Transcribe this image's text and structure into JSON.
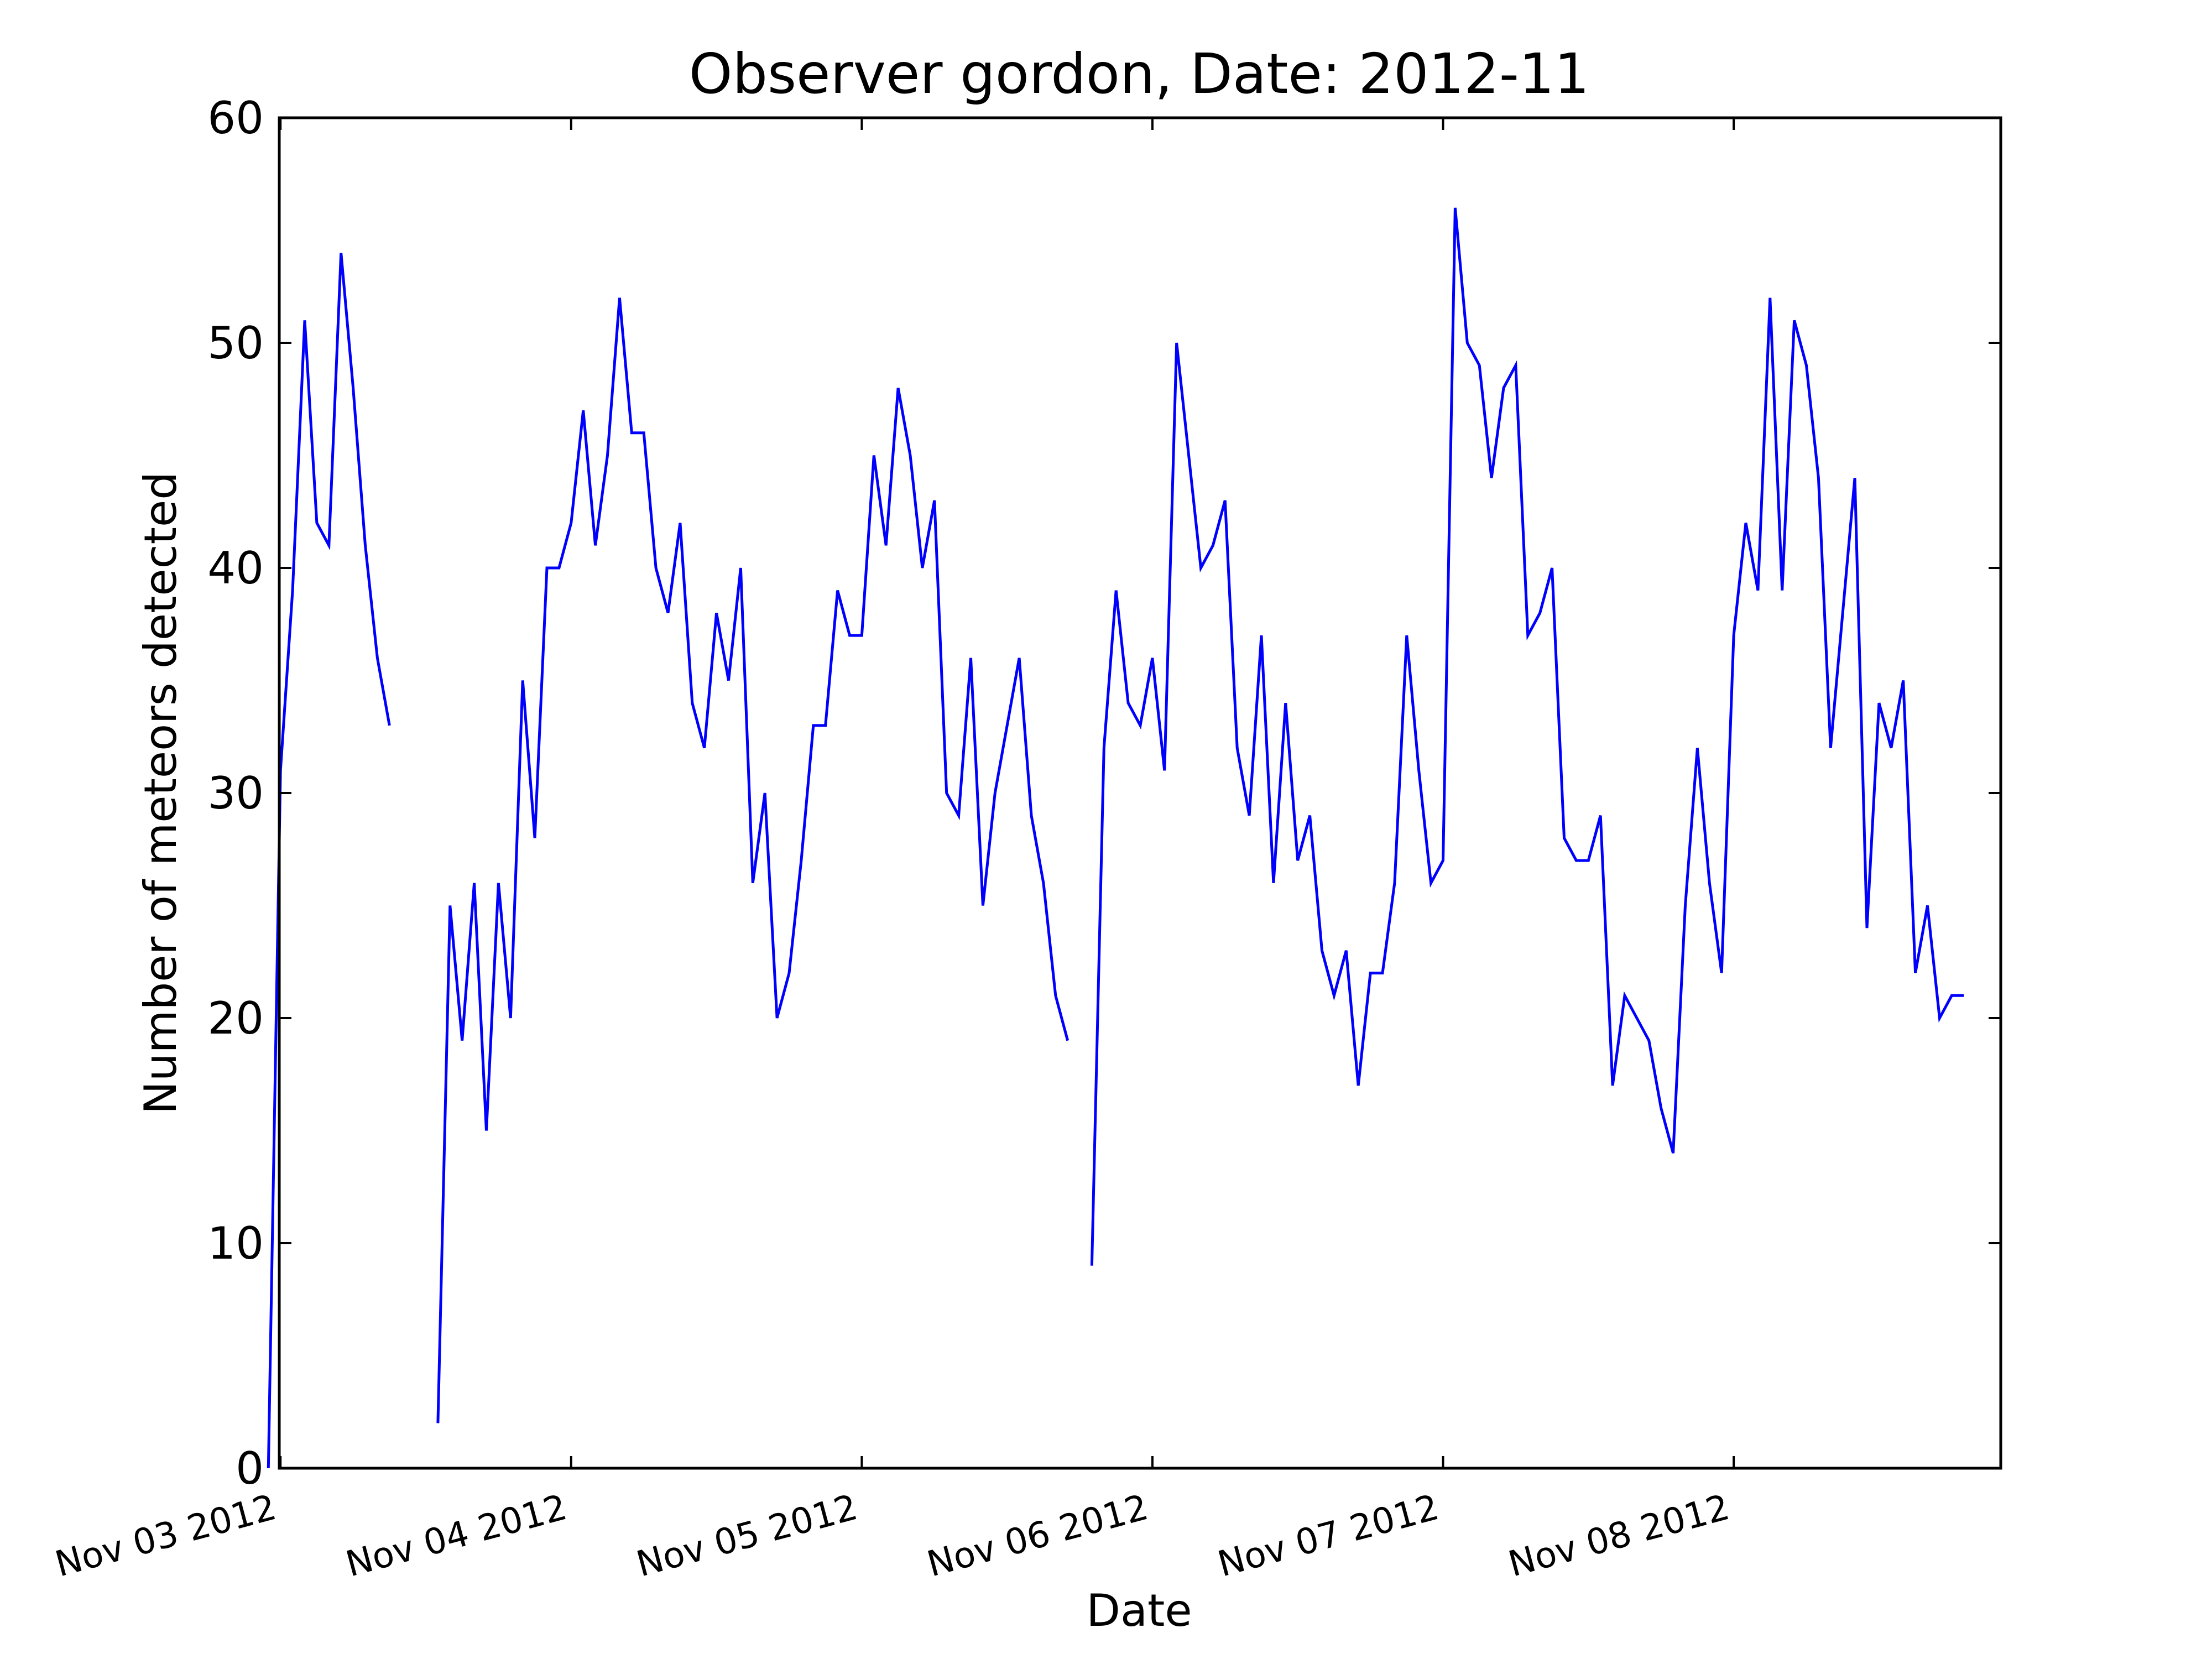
{
  "chart_data": {
    "type": "line",
    "title": "Observer gordon, Date: 2012-11",
    "xlabel": "Date",
    "ylabel": "Number of meteors detected",
    "ylim": [
      0,
      60
    ],
    "yticks": [
      0,
      10,
      20,
      30,
      40,
      50,
      60
    ],
    "xlim": [
      "2012-11-03 00:00",
      "2012-11-08 22:00"
    ],
    "xticks": [
      {
        "value": "2012-11-03 00:00",
        "label": "Nov 03 2012"
      },
      {
        "value": "2012-11-04 00:00",
        "label": "Nov 04 2012"
      },
      {
        "value": "2012-11-05 00:00",
        "label": "Nov 05 2012"
      },
      {
        "value": "2012-11-06 00:00",
        "label": "Nov 06 2012"
      },
      {
        "value": "2012-11-07 00:00",
        "label": "Nov 07 2012"
      },
      {
        "value": "2012-11-08 00:00",
        "label": "Nov 08 2012"
      }
    ],
    "grid": false,
    "line_color": "#0000ff",
    "series": [
      {
        "segments": [
          [
            [
              "2012-11-02 23:00",
              0
            ],
            [
              "2012-11-03 00:00",
              31
            ],
            [
              "2012-11-03 01:00",
              39
            ],
            [
              "2012-11-03 02:00",
              51
            ],
            [
              "2012-11-03 03:00",
              42
            ],
            [
              "2012-11-03 04:00",
              41
            ],
            [
              "2012-11-03 05:00",
              54
            ],
            [
              "2012-11-03 06:00",
              48
            ],
            [
              "2012-11-03 07:00",
              41
            ],
            [
              "2012-11-03 08:00",
              36
            ],
            [
              "2012-11-03 09:00",
              33
            ]
          ],
          [
            [
              "2012-11-03 13:00",
              2
            ],
            [
              "2012-11-03 14:00",
              25
            ],
            [
              "2012-11-03 15:00",
              19
            ],
            [
              "2012-11-03 16:00",
              26
            ],
            [
              "2012-11-03 17:00",
              15
            ],
            [
              "2012-11-03 18:00",
              26
            ],
            [
              "2012-11-03 19:00",
              20
            ],
            [
              "2012-11-03 20:00",
              35
            ],
            [
              "2012-11-03 21:00",
              28
            ],
            [
              "2012-11-03 22:00",
              40
            ],
            [
              "2012-11-03 23:00",
              40
            ],
            [
              "2012-11-04 00:00",
              42
            ],
            [
              "2012-11-04 01:00",
              47
            ],
            [
              "2012-11-04 02:00",
              41
            ],
            [
              "2012-11-04 03:00",
              45
            ],
            [
              "2012-11-04 04:00",
              52
            ],
            [
              "2012-11-04 05:00",
              46
            ],
            [
              "2012-11-04 06:00",
              46
            ],
            [
              "2012-11-04 07:00",
              40
            ],
            [
              "2012-11-04 08:00",
              38
            ],
            [
              "2012-11-04 09:00",
              42
            ],
            [
              "2012-11-04 10:00",
              34
            ],
            [
              "2012-11-04 11:00",
              32
            ],
            [
              "2012-11-04 12:00",
              38
            ],
            [
              "2012-11-04 13:00",
              35
            ],
            [
              "2012-11-04 14:00",
              40
            ],
            [
              "2012-11-04 15:00",
              26
            ],
            [
              "2012-11-04 16:00",
              30
            ],
            [
              "2012-11-04 17:00",
              20
            ],
            [
              "2012-11-04 18:00",
              22
            ],
            [
              "2012-11-04 19:00",
              27
            ],
            [
              "2012-11-04 20:00",
              33
            ],
            [
              "2012-11-04 21:00",
              33
            ],
            [
              "2012-11-04 22:00",
              39
            ],
            [
              "2012-11-04 23:00",
              37
            ],
            [
              "2012-11-05 00:00",
              37
            ],
            [
              "2012-11-05 01:00",
              45
            ],
            [
              "2012-11-05 02:00",
              41
            ],
            [
              "2012-11-05 03:00",
              48
            ],
            [
              "2012-11-05 04:00",
              45
            ],
            [
              "2012-11-05 05:00",
              40
            ],
            [
              "2012-11-05 06:00",
              43
            ],
            [
              "2012-11-05 07:00",
              30
            ],
            [
              "2012-11-05 08:00",
              29
            ],
            [
              "2012-11-05 09:00",
              36
            ],
            [
              "2012-11-05 10:00",
              25
            ],
            [
              "2012-11-05 11:00",
              30
            ],
            [
              "2012-11-05 12:00",
              33
            ],
            [
              "2012-11-05 13:00",
              36
            ],
            [
              "2012-11-05 14:00",
              29
            ],
            [
              "2012-11-05 15:00",
              26
            ],
            [
              "2012-11-05 16:00",
              21
            ],
            [
              "2012-11-05 17:00",
              19
            ]
          ],
          [
            [
              "2012-11-05 19:00",
              9
            ],
            [
              "2012-11-05 20:00",
              32
            ],
            [
              "2012-11-05 21:00",
              39
            ],
            [
              "2012-11-05 22:00",
              34
            ],
            [
              "2012-11-05 23:00",
              33
            ],
            [
              "2012-11-06 00:00",
              36
            ],
            [
              "2012-11-06 01:00",
              31
            ],
            [
              "2012-11-06 02:00",
              50
            ],
            [
              "2012-11-06 03:00",
              45
            ],
            [
              "2012-11-06 04:00",
              40
            ],
            [
              "2012-11-06 05:00",
              41
            ],
            [
              "2012-11-06 06:00",
              43
            ],
            [
              "2012-11-06 07:00",
              32
            ],
            [
              "2012-11-06 08:00",
              29
            ],
            [
              "2012-11-06 09:00",
              37
            ],
            [
              "2012-11-06 10:00",
              26
            ],
            [
              "2012-11-06 11:00",
              34
            ],
            [
              "2012-11-06 12:00",
              27
            ],
            [
              "2012-11-06 13:00",
              29
            ],
            [
              "2012-11-06 14:00",
              23
            ],
            [
              "2012-11-06 15:00",
              21
            ],
            [
              "2012-11-06 16:00",
              23
            ],
            [
              "2012-11-06 17:00",
              17
            ],
            [
              "2012-11-06 18:00",
              22
            ],
            [
              "2012-11-06 19:00",
              22
            ],
            [
              "2012-11-06 20:00",
              26
            ],
            [
              "2012-11-06 21:00",
              37
            ],
            [
              "2012-11-06 22:00",
              31
            ],
            [
              "2012-11-06 23:00",
              26
            ],
            [
              "2012-11-07 00:00",
              27
            ],
            [
              "2012-11-07 01:00",
              56
            ],
            [
              "2012-11-07 02:00",
              50
            ],
            [
              "2012-11-07 03:00",
              49
            ],
            [
              "2012-11-07 04:00",
              44
            ],
            [
              "2012-11-07 05:00",
              48
            ],
            [
              "2012-11-07 06:00",
              49
            ],
            [
              "2012-11-07 07:00",
              37
            ],
            [
              "2012-11-07 08:00",
              38
            ],
            [
              "2012-11-07 09:00",
              40
            ],
            [
              "2012-11-07 10:00",
              28
            ],
            [
              "2012-11-07 11:00",
              27
            ],
            [
              "2012-11-07 12:00",
              27
            ],
            [
              "2012-11-07 13:00",
              29
            ],
            [
              "2012-11-07 14:00",
              17
            ],
            [
              "2012-11-07 15:00",
              21
            ],
            [
              "2012-11-07 16:00",
              20
            ],
            [
              "2012-11-07 17:00",
              19
            ],
            [
              "2012-11-07 18:00",
              16
            ],
            [
              "2012-11-07 19:00",
              14
            ],
            [
              "2012-11-07 20:00",
              25
            ],
            [
              "2012-11-07 21:00",
              32
            ],
            [
              "2012-11-07 22:00",
              26
            ],
            [
              "2012-11-07 23:00",
              22
            ],
            [
              "2012-11-08 00:00",
              37
            ],
            [
              "2012-11-08 01:00",
              42
            ],
            [
              "2012-11-08 02:00",
              39
            ],
            [
              "2012-11-08 03:00",
              52
            ],
            [
              "2012-11-08 04:00",
              39
            ],
            [
              "2012-11-08 05:00",
              51
            ],
            [
              "2012-11-08 06:00",
              49
            ],
            [
              "2012-11-08 07:00",
              44
            ],
            [
              "2012-11-08 08:00",
              32
            ],
            [
              "2012-11-08 09:00",
              38
            ],
            [
              "2012-11-08 10:00",
              44
            ],
            [
              "2012-11-08 11:00",
              24
            ],
            [
              "2012-11-08 12:00",
              34
            ],
            [
              "2012-11-08 13:00",
              32
            ],
            [
              "2012-11-08 14:00",
              35
            ],
            [
              "2012-11-08 15:00",
              22
            ],
            [
              "2012-11-08 16:00",
              25
            ],
            [
              "2012-11-08 17:00",
              20
            ],
            [
              "2012-11-08 18:00",
              21
            ],
            [
              "2012-11-08 19:00",
              21
            ]
          ]
        ]
      }
    ]
  }
}
